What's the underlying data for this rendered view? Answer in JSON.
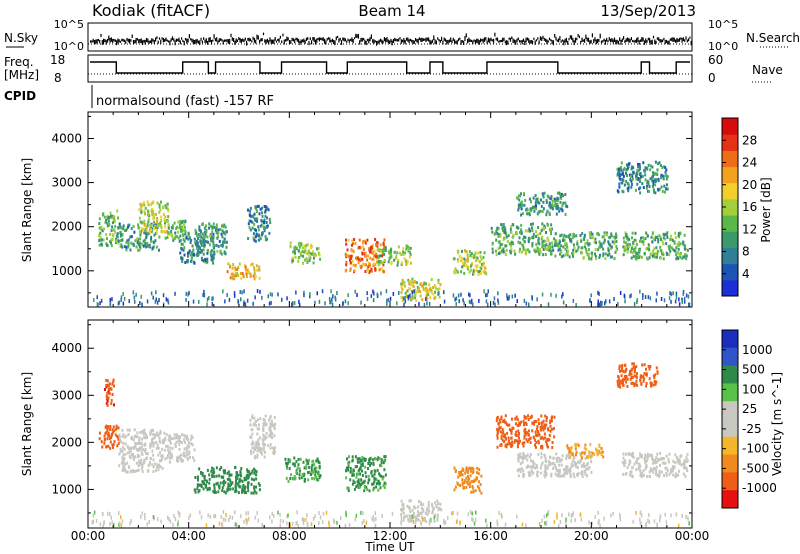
{
  "header": {
    "station": "Kodiak (fitACF)",
    "beam": "Beam 14",
    "date": "13/Sep/2013"
  },
  "top_panels": {
    "nsky_label": "N.Sky",
    "nsky_ticks": [
      "10^5",
      "10^0"
    ],
    "nsearch_label": "N.Search",
    "nsearch_ticks": [
      "10^5",
      "10^0"
    ],
    "freq_label_line1": "Freq.",
    "freq_label_line2": "[MHz]",
    "freq_ticks": [
      "18",
      "8"
    ],
    "nave_label": "Nave",
    "nave_ticks": [
      "60",
      "0"
    ],
    "cpid_label": "CPID",
    "cpid_text": "normalsound (fast) -157 RF"
  },
  "chart_data": [
    {
      "type": "heatmap",
      "title": "",
      "xlabel": "Time UT",
      "ylabel": "Slant Range [km]",
      "x_ticks": [
        "00:00",
        "04:00",
        "08:00",
        "12:00",
        "16:00",
        "20:00",
        "00:00"
      ],
      "xlim_hours": [
        0,
        24
      ],
      "y_ticks": [
        1000,
        2000,
        3000,
        4000
      ],
      "ylim_km": [
        180,
        4600
      ],
      "colorbar": {
        "label": "Power [dB]",
        "ticks": [
          4,
          8,
          12,
          16,
          20,
          24,
          28
        ],
        "range": [
          0,
          32
        ],
        "colors": [
          "#1c2fd6",
          "#1c54b5",
          "#2f7f97",
          "#3a9a6a",
          "#5ab84a",
          "#a5cf3a",
          "#f2cf2b",
          "#f2a21e",
          "#ee6e18",
          "#e63114",
          "#d60c0c"
        ]
      },
      "regions": [
        {
          "t": [
            0.4,
            1.2
          ],
          "r": [
            1600,
            2400
          ],
          "value": 12
        },
        {
          "t": [
            1.2,
            2.8
          ],
          "r": [
            1500,
            2100
          ],
          "value": 10
        },
        {
          "t": [
            2.0,
            3.2
          ],
          "r": [
            1900,
            2600
          ],
          "value": 16
        },
        {
          "t": [
            3.0,
            4.0
          ],
          "r": [
            1700,
            2200
          ],
          "value": 12
        },
        {
          "t": [
            3.6,
            5.0
          ],
          "r": [
            1200,
            1800
          ],
          "value": 8
        },
        {
          "t": [
            4.2,
            5.5
          ],
          "r": [
            1400,
            2100
          ],
          "value": 10
        },
        {
          "t": [
            5.5,
            6.8
          ],
          "r": [
            850,
            1200
          ],
          "value": 20
        },
        {
          "t": [
            6.3,
            7.2
          ],
          "r": [
            1700,
            2500
          ],
          "value": 8
        },
        {
          "t": [
            8.0,
            9.2
          ],
          "r": [
            1200,
            1700
          ],
          "value": 14
        },
        {
          "t": [
            10.2,
            11.8
          ],
          "r": [
            1000,
            1750
          ],
          "value": 24
        },
        {
          "t": [
            11.5,
            12.8
          ],
          "r": [
            1150,
            1600
          ],
          "value": 14
        },
        {
          "t": [
            12.4,
            14.0
          ],
          "r": [
            350,
            850
          ],
          "value": 18
        },
        {
          "t": [
            14.5,
            15.8
          ],
          "r": [
            950,
            1500
          ],
          "value": 16
        },
        {
          "t": [
            16.0,
            18.5
          ],
          "r": [
            1400,
            2100
          ],
          "value": 12
        },
        {
          "t": [
            17.0,
            19.0
          ],
          "r": [
            2300,
            2800
          ],
          "value": 10
        },
        {
          "t": [
            18.5,
            21.0
          ],
          "r": [
            1300,
            1900
          ],
          "value": 12
        },
        {
          "t": [
            21.2,
            23.8
          ],
          "r": [
            1300,
            1900
          ],
          "value": 12
        },
        {
          "t": [
            21.0,
            23.0
          ],
          "r": [
            2800,
            3500
          ],
          "value": 8
        }
      ]
    },
    {
      "type": "heatmap",
      "title": "",
      "xlabel": "Time UT",
      "ylabel": "Slant Range [km]",
      "x_ticks": [
        "00:00",
        "04:00",
        "08:00",
        "12:00",
        "16:00",
        "20:00",
        "00:00"
      ],
      "xlim_hours": [
        0,
        24
      ],
      "y_ticks": [
        1000,
        2000,
        3000,
        4000
      ],
      "ylim_km": [
        180,
        4600
      ],
      "colorbar": {
        "label": "Velocity [m s^-1]",
        "ticks": [
          "1000",
          "500",
          "100",
          "25",
          "-25",
          "-100",
          "-500",
          "-1000"
        ],
        "colors": [
          "#1a2dbf",
          "#2f55c9",
          "#2f8a4a",
          "#59c04a",
          "#c8c8c0",
          "#c8c8c0",
          "#f5b62c",
          "#f08a1e",
          "#ee5e16",
          "#e61010"
        ]
      },
      "regions": [
        {
          "t": [
            0.4,
            1.2
          ],
          "r": [
            1900,
            2400
          ],
          "value": -500
        },
        {
          "t": [
            0.6,
            1.0
          ],
          "r": [
            2800,
            3400
          ],
          "value": -700
        },
        {
          "t": [
            1.2,
            3.0
          ],
          "r": [
            1400,
            2300
          ],
          "value": 0
        },
        {
          "t": [
            3.0,
            4.2
          ],
          "r": [
            1600,
            2200
          ],
          "value": 0
        },
        {
          "t": [
            4.2,
            6.8
          ],
          "r": [
            950,
            1500
          ],
          "value": 150
        },
        {
          "t": [
            6.4,
            7.4
          ],
          "r": [
            1700,
            2600
          ],
          "value": 0
        },
        {
          "t": [
            7.8,
            9.2
          ],
          "r": [
            1200,
            1700
          ],
          "value": 100
        },
        {
          "t": [
            10.2,
            11.8
          ],
          "r": [
            1000,
            1750
          ],
          "value": 120
        },
        {
          "t": [
            12.4,
            14.0
          ],
          "r": [
            350,
            800
          ],
          "value": 0
        },
        {
          "t": [
            14.5,
            15.6
          ],
          "r": [
            950,
            1500
          ],
          "value": -200
        },
        {
          "t": [
            16.2,
            18.5
          ],
          "r": [
            1900,
            2600
          ],
          "value": -600
        },
        {
          "t": [
            17.0,
            20.0
          ],
          "r": [
            1300,
            1800
          ],
          "value": 0
        },
        {
          "t": [
            19.0,
            20.5
          ],
          "r": [
            1700,
            2000
          ],
          "value": -100
        },
        {
          "t": [
            21.2,
            23.8
          ],
          "r": [
            1300,
            1800
          ],
          "value": 0
        },
        {
          "t": [
            21.0,
            22.6
          ],
          "r": [
            3200,
            3700
          ],
          "value": -600
        }
      ]
    }
  ]
}
